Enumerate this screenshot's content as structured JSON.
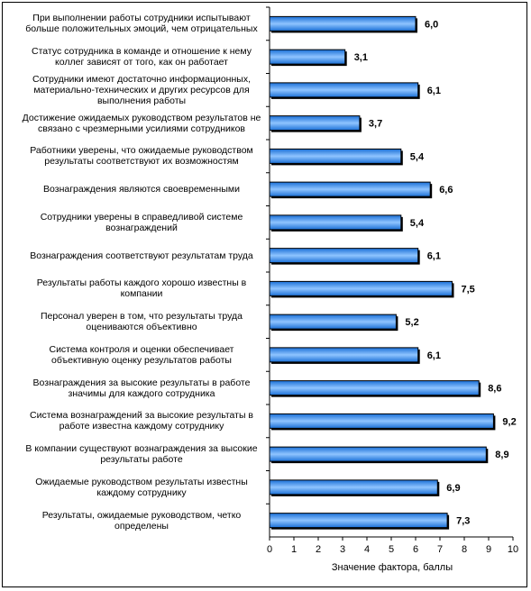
{
  "chart_data": {
    "type": "bar",
    "orientation": "horizontal",
    "categories": [
      "При выполнении работы сотрудники испытывают больше положительных эмоций, чем отрицательных",
      "Статус сотрудника в команде и отношение к нему коллег зависят от того, как он работает",
      "Сотрудники имеют достаточно информационных, материально-технических и других ресурсов для выполнения работы",
      "Достижение ожидаемых руководством результатов не связано с чрезмерными усилиями сотрудников",
      "Работники уверены, что ожидаемые руководством результаты соответствуют их возможностям",
      "Вознаграждения являются своевременными",
      "Сотрудники уверены в справедливой системе вознаграждений",
      "Вознаграждения соответствуют результатам труда",
      "Результаты работы каждого хорошо известны в компании",
      "Персонал уверен в том, что результаты труда оцениваются объективно",
      "Система контроля и оценки обеспечивает объективную оценку результатов работы",
      "Вознаграждения за высокие результаты в работе значимы для каждого сотрудника",
      "Система вознаграждений за высокие результаты в работе известна каждому сотруднику",
      "В компании существуют вознаграждения за высокие результаты работе",
      "Ожидаемые руководством результаты известны каждому сотруднику",
      "Результаты, ожидаемые руководством, четко определены"
    ],
    "values": [
      6.0,
      3.1,
      6.1,
      3.7,
      5.4,
      6.6,
      5.4,
      6.1,
      7.5,
      5.2,
      6.1,
      8.6,
      9.2,
      8.9,
      6.9,
      7.3
    ],
    "value_labels": [
      "6,0",
      "3,1",
      "6,1",
      "3,7",
      "5,4",
      "6,6",
      "5,4",
      "6,1",
      "7,5",
      "5,2",
      "6,1",
      "8,6",
      "9,2",
      "8,9",
      "6,9",
      "7,3"
    ],
    "xlabel": "Значение фактора, баллы",
    "ylabel": "",
    "title": "",
    "xlim": [
      0,
      10
    ],
    "xticks": [
      "0",
      "1",
      "2",
      "3",
      "4",
      "5",
      "6",
      "7",
      "8",
      "9",
      "10"
    ],
    "grid": false,
    "legend": "none",
    "bar_gradient": [
      "#1a6fd6",
      "#8fc4ff",
      "#1a6fd6"
    ],
    "bar_border": "#000000"
  }
}
